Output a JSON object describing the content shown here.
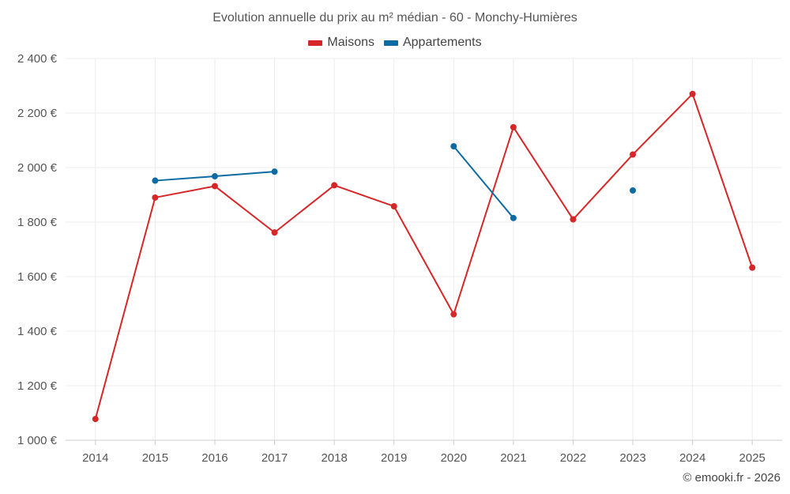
{
  "chart_data": {
    "type": "line",
    "title": "Evolution annuelle du prix au m² médian - 60 - Monchy-Humières",
    "categories": [
      "2014",
      "2015",
      "2016",
      "2017",
      "2018",
      "2019",
      "2020",
      "2021",
      "2022",
      "2023",
      "2024",
      "2025"
    ],
    "y_tick_labels": [
      "1 000 €",
      "1 200 €",
      "1 400 €",
      "1 600 €",
      "1 800 €",
      "2 000 €",
      "2 200 €",
      "2 400 €"
    ],
    "y_ticks": [
      1000,
      1200,
      1400,
      1600,
      1800,
      2000,
      2200,
      2400
    ],
    "ylim": [
      1000,
      2400
    ],
    "xlabel": "",
    "ylabel": "",
    "grid": true,
    "legend_position": "top-center",
    "series": [
      {
        "name": "Maisons",
        "color": "#d62728",
        "values": [
          1078,
          1890,
          1932,
          1762,
          1935,
          1858,
          1462,
          2148,
          1810,
          2048,
          2270,
          1633
        ]
      },
      {
        "name": "Appartements",
        "color": "#0d6ba3",
        "values": [
          null,
          1952,
          1968,
          1985,
          null,
          null,
          2078,
          1815,
          null,
          1916,
          null,
          null
        ]
      }
    ]
  },
  "credit": "© emooki.fr - 2026"
}
